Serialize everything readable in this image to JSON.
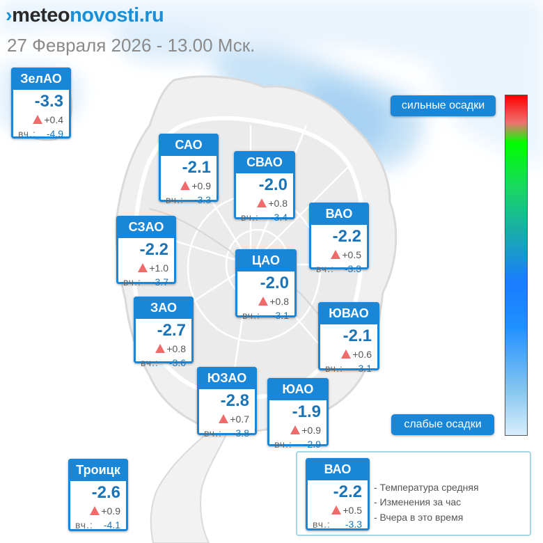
{
  "header": {
    "logo": {
      "part_a": "meteo",
      "part_b": "novosti.ru"
    },
    "datetime": "27 Февраля 2026 - 13.00 Мск."
  },
  "labels": {
    "yesterday_prefix": "вч.:"
  },
  "districts": [
    {
      "name": "ЗелАО",
      "temp": "-3.3",
      "change": "+0.4",
      "yesterday": "-4.9"
    },
    {
      "name": "САО",
      "temp": "-2.1",
      "change": "+0.9",
      "yesterday": "-3.3"
    },
    {
      "name": "СВАО",
      "temp": "-2.0",
      "change": "+0.8",
      "yesterday": "-3.4"
    },
    {
      "name": "ВАО",
      "temp": "-2.2",
      "change": "+0.5",
      "yesterday": "-3.3"
    },
    {
      "name": "СЗАО",
      "temp": "-2.2",
      "change": "+1.0",
      "yesterday": "-3.7"
    },
    {
      "name": "ЦАО",
      "temp": "-2.0",
      "change": "+0.8",
      "yesterday": "-3.1"
    },
    {
      "name": "ЗАО",
      "temp": "-2.7",
      "change": "+0.8",
      "yesterday": "-3.6"
    },
    {
      "name": "ЮВАО",
      "temp": "-2.1",
      "change": "+0.6",
      "yesterday": "-3.1"
    },
    {
      "name": "ЮЗАО",
      "temp": "-2.8",
      "change": "+0.7",
      "yesterday": "-3.8"
    },
    {
      "name": "ЮАО",
      "temp": "-1.9",
      "change": "+0.9",
      "yesterday": "-2.9"
    },
    {
      "name": "Троицк",
      "temp": "-2.6",
      "change": "+0.9",
      "yesterday": "-4.1"
    }
  ],
  "precip_scale": {
    "strong_label": "сильные осадки",
    "weak_label": "слабые осадки"
  },
  "legend": {
    "sample": {
      "name": "ВАО",
      "temp": "-2.2",
      "change": "+0.5",
      "yesterday": "-3.3"
    },
    "items": [
      "- Температура средняя",
      "- Изменения за час",
      "- Вчера в это время"
    ]
  },
  "colors": {
    "accent": "#1a86d8",
    "temperature_text": "#1b74b8",
    "rise_triangle": "#ef6b6b",
    "legend_border": "#a6d6e6"
  }
}
